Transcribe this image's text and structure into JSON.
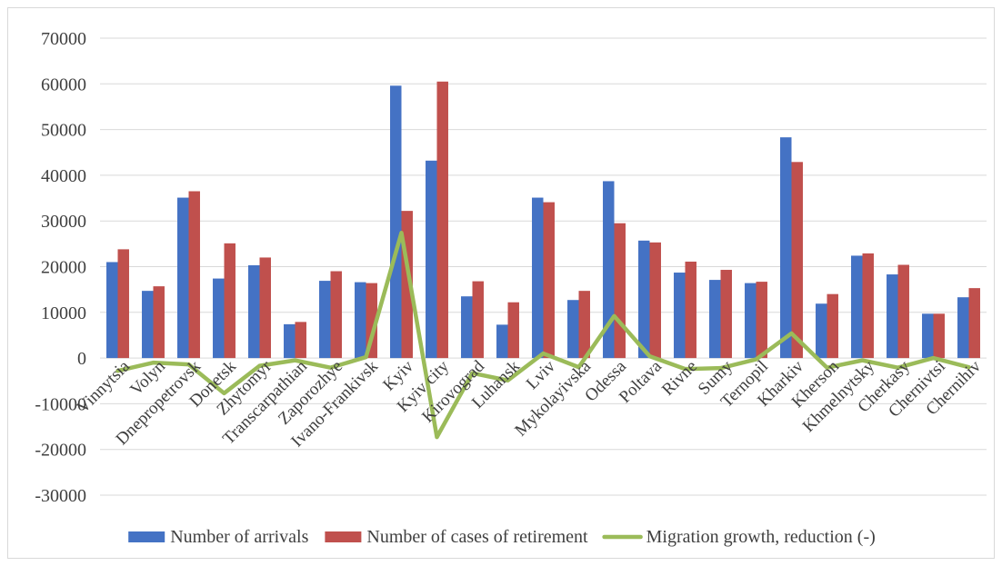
{
  "chart_data": {
    "type": "bar",
    "title": "",
    "xlabel": "",
    "ylabel": "",
    "ylim": [
      -30000,
      70000
    ],
    "yticks": [
      70000,
      60000,
      50000,
      40000,
      30000,
      20000,
      10000,
      0,
      -10000,
      -20000,
      -30000
    ],
    "grid": true,
    "legend_position": "bottom",
    "categories": [
      "Vinnytsia",
      "Volyn",
      "Dnepropetrovsk",
      "Donetsk",
      "Zhytomyr",
      "Transcarpathian",
      "Zaporozhye",
      "Ivano-Frankivsk",
      "Kyiv",
      "Kyiv city",
      "Kirovograd",
      "Luhansk",
      "Lviv",
      "Mykolayivska",
      "Odessa",
      "Poltava",
      "Rivne",
      "Sumy",
      "Ternopil",
      "Kharkiv",
      "Kherson",
      "Khmelnytsky",
      "Cherkasy",
      "Chernivtsi",
      "Chernihiv"
    ],
    "series": [
      {
        "name": "Number of arrivals",
        "type": "bar",
        "color": "#4472c4",
        "values": [
          21000,
          14700,
          35100,
          17400,
          20300,
          7400,
          16900,
          16600,
          59600,
          43200,
          13500,
          7300,
          35100,
          12700,
          38700,
          25700,
          18700,
          17100,
          16400,
          48300,
          11900,
          22400,
          18300,
          9700,
          13300
        ]
      },
      {
        "name": "Number of cases of retirement",
        "type": "bar",
        "color": "#c0504d",
        "values": [
          23800,
          15700,
          36500,
          25100,
          22000,
          7900,
          19000,
          16400,
          32200,
          60500,
          16800,
          12200,
          34100,
          14700,
          29500,
          25300,
          21100,
          19300,
          16700,
          42900,
          14000,
          22900,
          20400,
          9700,
          15300
        ]
      },
      {
        "name": "Migration growth, reduction (-)",
        "type": "line",
        "color": "#9bbb59",
        "values": [
          -2800,
          -1000,
          -1400,
          -7700,
          -1700,
          -500,
          -2100,
          200,
          27400,
          -17300,
          -3300,
          -4900,
          1000,
          -2000,
          9200,
          400,
          -2400,
          -2200,
          -300,
          5400,
          -2100,
          -500,
          -2100,
          0,
          -2000
        ]
      }
    ]
  }
}
